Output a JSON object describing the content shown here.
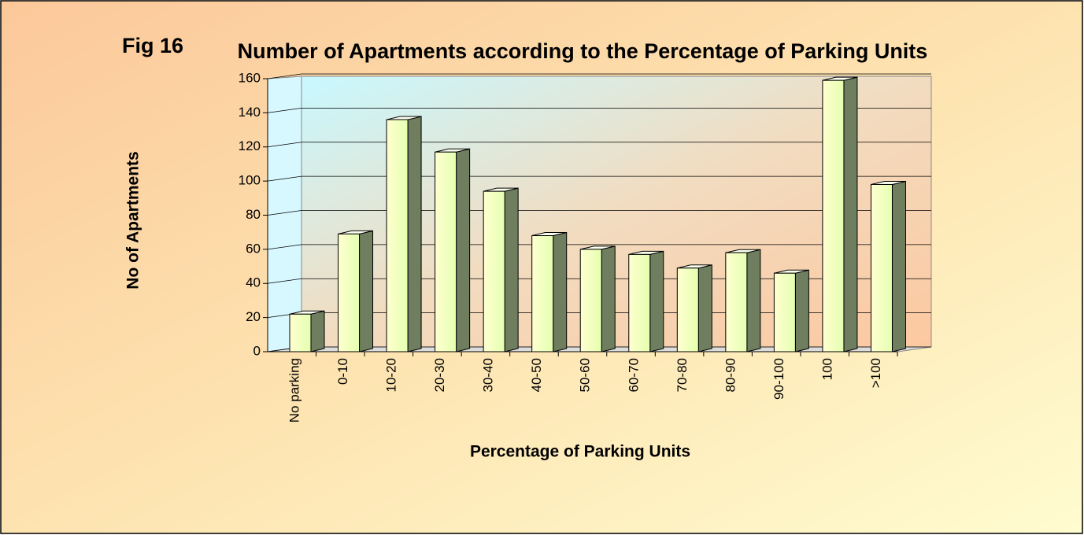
{
  "chart_data": {
    "type": "bar3d",
    "figure_label": "Fig 16",
    "title": "Number of Apartments according to the Percentage of Parking Units",
    "x_label": "Percentage of Parking Units",
    "y_label": "No of Apartments",
    "categories": [
      "No parking",
      "0-10",
      "10-20",
      "20-30",
      "30-40",
      "40-50",
      "50-60",
      "60-70",
      "70-80",
      "80-90",
      "90-100",
      "100",
      ">100"
    ],
    "values": [
      22,
      69,
      136,
      117,
      94,
      68,
      60,
      57,
      49,
      58,
      46,
      159,
      98
    ],
    "color": "#f4ffb8",
    "side_color": "#6e7e5e",
    "ylim": [
      0,
      160
    ],
    "yticks": [
      0,
      20,
      40,
      60,
      80,
      100,
      120,
      140,
      160
    ],
    "grid": true
  }
}
